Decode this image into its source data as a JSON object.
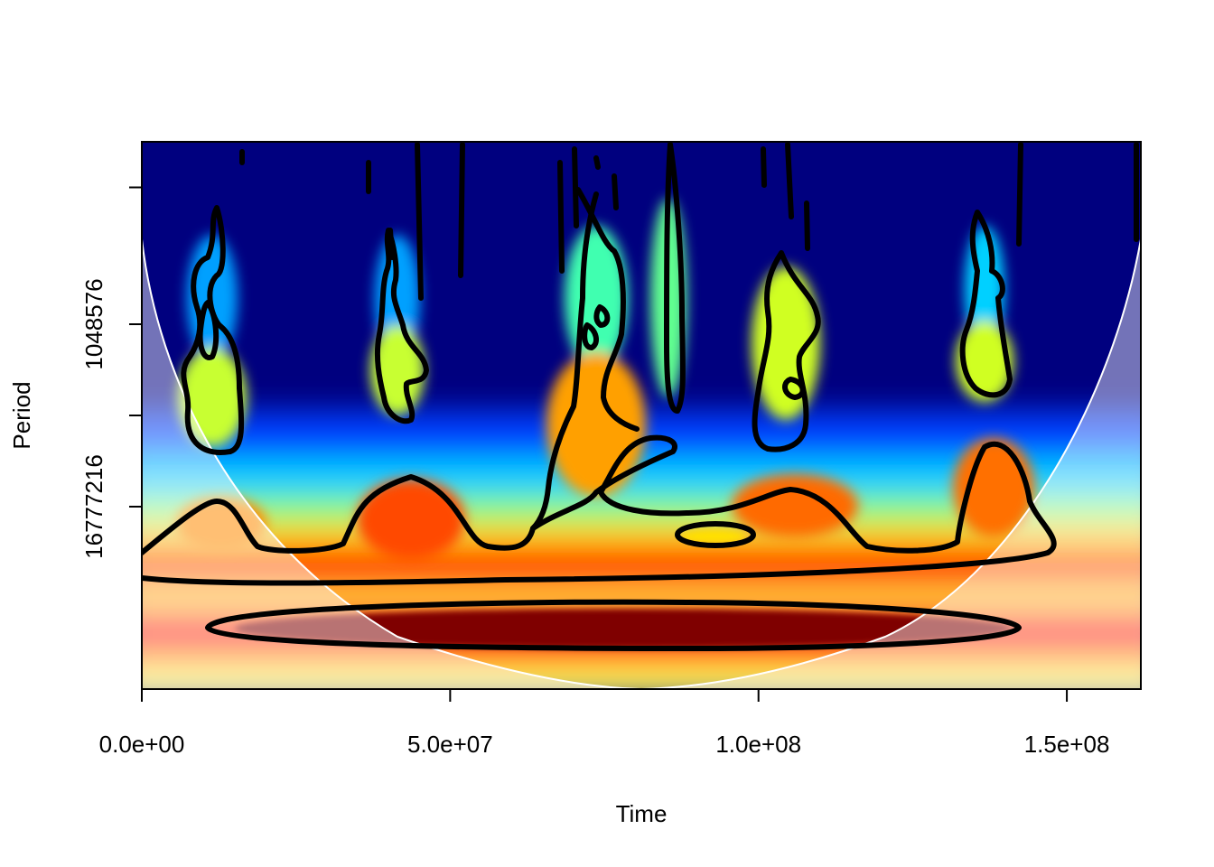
{
  "chart_data": {
    "type": "heatmap",
    "title": "",
    "xlabel": "Time",
    "ylabel": "Period",
    "xlim": [
      0,
      162000000
    ],
    "x_ticks": [
      {
        "value": 0,
        "label": "0.0e+00"
      },
      {
        "value": 50000000,
        "label": "5.0e+07"
      },
      {
        "value": 100000000,
        "label": "1.0e+08"
      },
      {
        "value": 150000000,
        "label": "1.5e+08"
      }
    ],
    "y_scale": "log2",
    "ylim": [
      65536,
      268435456
    ],
    "y_ticks": [
      {
        "value": 131072,
        "label": ""
      },
      {
        "value": 1048576,
        "label": "1048576"
      },
      {
        "value": 4194304,
        "label": ""
      },
      {
        "value": 16777216,
        "label": "16777216"
      }
    ],
    "colormap": [
      "#00007f",
      "#0000ff",
      "#007fff",
      "#00ffff",
      "#7fff7f",
      "#ffff00",
      "#ff7f00",
      "#ff0000",
      "#7f0000"
    ],
    "cone_of_influence": true,
    "significance_contours": true
  },
  "colors": {
    "deep_blue": "#00007f",
    "mid_blue": "#0040ff",
    "cyan": "#00ffff",
    "yellow": "#ffff40",
    "orange": "#ff7f00",
    "red": "#ee0000",
    "dark_red": "#7f0000"
  }
}
